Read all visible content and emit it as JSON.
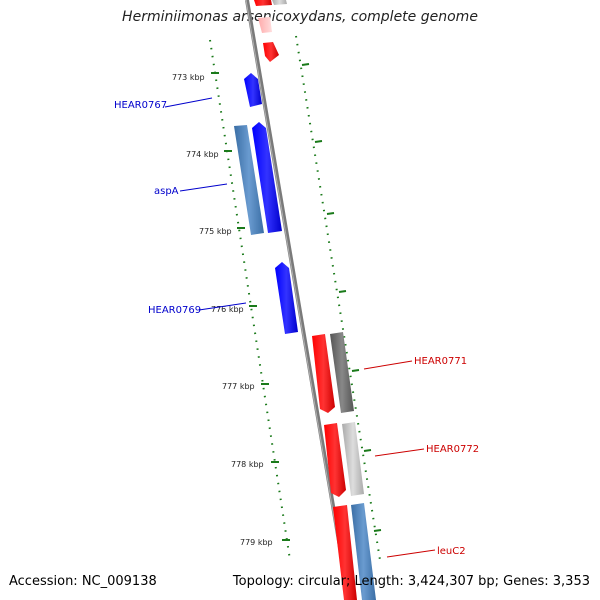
{
  "title": "Herminiimonas arsenicoxydans, complete genome",
  "accession_text": "Accession: NC_009138",
  "summary_text": "Topology: circular; Length: 3,424,307 bp; Genes: 3,353",
  "ticks": [
    "773 kbp",
    "774 kbp",
    "775 kbp",
    "776 kbp",
    "777 kbp",
    "778 kbp",
    "779 kbp"
  ],
  "genes": [
    {
      "label": "HEAR0767",
      "strand": "forward",
      "color": "#0000cc"
    },
    {
      "label": "aspA",
      "strand": "forward",
      "color": "#0000cc"
    },
    {
      "label": "HEAR0769",
      "strand": "forward",
      "color": "#0000cc"
    },
    {
      "label": "HEAR0771",
      "strand": "reverse",
      "color": "#cc0000"
    },
    {
      "label": "HEAR0772",
      "strand": "reverse",
      "color": "#cc0000"
    },
    {
      "label": "leuC2",
      "strand": "reverse",
      "color": "#cc0000"
    }
  ],
  "colors": {
    "forward_gene": "#0000ff",
    "reverse_gene": "#ff0000",
    "forward_label": "#0000cc",
    "reverse_label": "#cc0000",
    "cog_blue": "#4682b4",
    "cog_gray_dark": "#666666",
    "cog_gray_light": "#bbbbbb",
    "backbone": "#808080",
    "tick_mark": "#006600"
  }
}
